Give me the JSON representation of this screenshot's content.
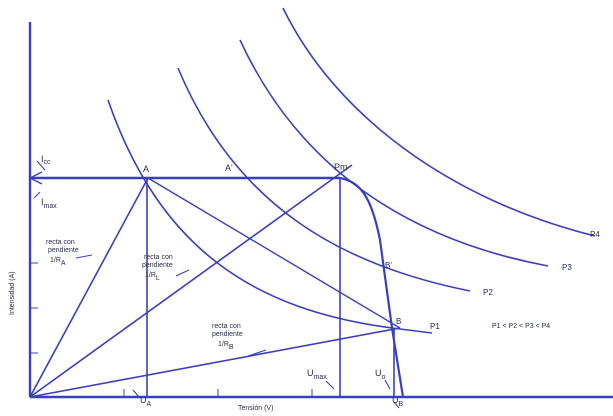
{
  "labels": {
    "y_axis": "Intensidad (A)",
    "x_axis": "Tensión (V)",
    "icc": "I",
    "icc_sub": "cc",
    "imax": "I",
    "imax_sub": "max",
    "point_a": "A",
    "point_a2": "A'",
    "point_pm": "Pm",
    "point_b": "B",
    "point_b2": "B'",
    "ua": "U",
    "ua_sub": "A",
    "umax": "U",
    "umax_sub": "max",
    "ub": "U",
    "ub_sub": "B",
    "uo": "U",
    "uo_sub": "o",
    "slope_a_1": "recta con",
    "slope_a_2": "pendiente",
    "slope_a_3": "1/R",
    "slope_a_sub": "A",
    "slope_l_1": "recta con",
    "slope_l_2": "pendiente",
    "slope_l_3": "1/R",
    "slope_l_sub": "L",
    "slope_b_1": "recta con",
    "slope_b_2": "pendiente",
    "slope_b_3": "1/R",
    "slope_b_sub": "B",
    "p1": "P1",
    "p2": "P2",
    "p3": "P3",
    "p4": "P4",
    "inequality": "P1 < P2 < P3 < P4"
  },
  "colors": {
    "line": "#3a3fc0",
    "text": "#2b2b4a",
    "background": "#ffffff"
  }
}
